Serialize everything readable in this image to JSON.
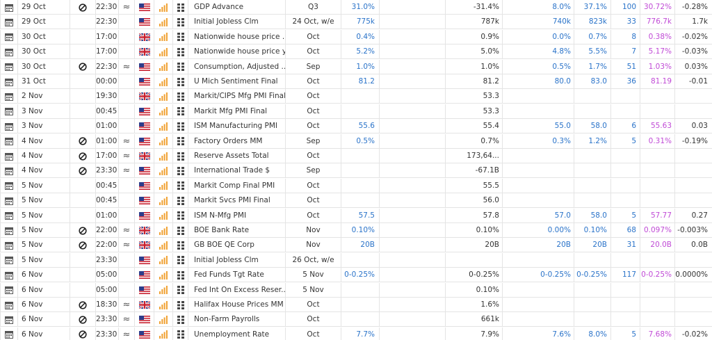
{
  "table": {
    "rows": [
      {
        "date": "29 Oct",
        "halted": true,
        "time": "22:30",
        "flag": "us",
        "event": "GDP Advance",
        "period": "Q3",
        "actual": "31.0%",
        "prior": "-31.4%",
        "low": "8.0%",
        "high": "37.1%",
        "count": 100,
        "mean": "30.72%",
        "diff": "-0.28%"
      },
      {
        "date": "29 Oct",
        "halted": false,
        "time": "22:30",
        "flag": "us",
        "event": "Initial Jobless Clm",
        "period": "24 Oct, w/e",
        "actual": "775k",
        "prior": "787k",
        "low": "740k",
        "high": "823k",
        "count": 33,
        "mean": "776.7k",
        "diff": "1.7k"
      },
      {
        "date": "30 Oct",
        "halted": false,
        "time": "17:00",
        "flag": "uk",
        "event": "Nationwide house price ...",
        "period": "Oct",
        "actual": "0.4%",
        "prior": "0.9%",
        "low": "0.0%",
        "high": "0.7%",
        "count": 8,
        "mean": "0.38%",
        "diff": "-0.02%"
      },
      {
        "date": "30 Oct",
        "halted": false,
        "time": "17:00",
        "flag": "uk",
        "event": "Nationwide house price yy",
        "period": "Oct",
        "actual": "5.2%",
        "prior": "5.0%",
        "low": "4.8%",
        "high": "5.5%",
        "count": 7,
        "mean": "5.17%",
        "diff": "-0.03%"
      },
      {
        "date": "30 Oct",
        "halted": true,
        "time": "22:30",
        "flag": "us",
        "event": "Consumption, Adjusted ...",
        "period": "Sep",
        "actual": "1.0%",
        "prior": "1.0%",
        "low": "0.5%",
        "high": "1.7%",
        "count": 51,
        "mean": "1.03%",
        "diff": "0.03%"
      },
      {
        "date": "31 Oct",
        "halted": false,
        "time": "00:00",
        "flag": "us",
        "event": "U Mich Sentiment Final",
        "period": "Oct",
        "actual": "81.2",
        "prior": "81.2",
        "low": "80.0",
        "high": "83.0",
        "count": 36,
        "mean": "81.19",
        "diff": "-0.01"
      },
      {
        "date": "2 Nov",
        "halted": false,
        "time": "19:30",
        "flag": "uk",
        "event": "Markit/CIPS Mfg PMI Final",
        "period": "Oct",
        "prior": "53.3"
      },
      {
        "date": "3 Nov",
        "halted": false,
        "time": "00:45",
        "flag": "us",
        "event": "Markit Mfg PMI Final",
        "period": "Oct",
        "prior": "53.3"
      },
      {
        "date": "3 Nov",
        "halted": false,
        "time": "01:00",
        "flag": "us",
        "event": "ISM Manufacturing PMI",
        "period": "Oct",
        "actual": "55.6",
        "prior": "55.4",
        "low": "55.0",
        "high": "58.0",
        "count": 6,
        "mean": "55.63",
        "diff": "0.03"
      },
      {
        "date": "4 Nov",
        "halted": true,
        "time": "01:00",
        "flag": "us",
        "event": "Factory Orders MM",
        "period": "Sep",
        "actual": "0.5%",
        "prior": "0.7%",
        "low": "0.3%",
        "high": "1.2%",
        "count": 5,
        "mean": "0.31%",
        "diff": "-0.19%"
      },
      {
        "date": "4 Nov",
        "halted": true,
        "time": "17:00",
        "flag": "uk",
        "event": "Reserve Assets Total",
        "period": "Oct",
        "prior": "173,64..."
      },
      {
        "date": "4 Nov",
        "halted": true,
        "time": "23:30",
        "flag": "us",
        "event": "International Trade $",
        "period": "Sep",
        "prior": "-67.1B"
      },
      {
        "date": "5 Nov",
        "halted": false,
        "time": "00:45",
        "flag": "us",
        "event": "Markit Comp Final PMI",
        "period": "Oct",
        "prior": "55.5"
      },
      {
        "date": "5 Nov",
        "halted": false,
        "time": "00:45",
        "flag": "us",
        "event": "Markit Svcs PMI Final",
        "period": "Oct",
        "prior": "56.0"
      },
      {
        "date": "5 Nov",
        "halted": false,
        "time": "01:00",
        "flag": "us",
        "event": "ISM N-Mfg PMI",
        "period": "Oct",
        "actual": "57.5",
        "prior": "57.8",
        "low": "57.0",
        "high": "58.0",
        "count": 5,
        "mean": "57.77",
        "diff": "0.27"
      },
      {
        "date": "5 Nov",
        "halted": true,
        "time": "22:00",
        "flag": "uk",
        "event": "BOE Bank Rate",
        "period": "Nov",
        "actual": "0.10%",
        "prior": "0.10%",
        "low": "0.00%",
        "high": "0.10%",
        "count": 68,
        "mean": "0.097%",
        "diff": "-0.003%"
      },
      {
        "date": "5 Nov",
        "halted": true,
        "time": "22:00",
        "flag": "uk",
        "event": "GB BOE QE Corp",
        "period": "Nov",
        "actual": "20B",
        "prior": "20B",
        "low": "20B",
        "high": "20B",
        "count": 31,
        "mean": "20.0B",
        "diff": "0.0B"
      },
      {
        "date": "5 Nov",
        "halted": false,
        "time": "23:30",
        "flag": "us",
        "event": "Initial Jobless Clm",
        "period": "26 Oct, w/e"
      },
      {
        "date": "6 Nov",
        "halted": false,
        "time": "05:00",
        "flag": "us",
        "event": "Fed Funds Tgt Rate",
        "period": "5 Nov",
        "actual": "0-0.25%",
        "prior": "0-0.25%",
        "low": "0-0.25%",
        "high": "0-0.25%",
        "count": 117,
        "mean": "0-0.25%",
        "diff": "0.0000%"
      },
      {
        "date": "6 Nov",
        "halted": false,
        "time": "05:00",
        "flag": "us",
        "event": "Fed Int On Excess Reser...",
        "period": "5 Nov",
        "prior": "0.10%"
      },
      {
        "date": "6 Nov",
        "halted": true,
        "time": "18:30",
        "flag": "uk",
        "event": "Halifax House Prices MM",
        "period": "Oct",
        "prior": "1.6%"
      },
      {
        "date": "6 Nov",
        "halted": true,
        "time": "23:30",
        "flag": "us",
        "event": "Non-Farm Payrolls",
        "period": "Oct",
        "prior": "661k"
      },
      {
        "date": "6 Nov",
        "halted": true,
        "time": "23:30",
        "flag": "us",
        "event": "Unemployment Rate",
        "period": "Oct",
        "actual": "7.7%",
        "prior": "7.9%",
        "low": "7.6%",
        "high": "8.0%",
        "count": 5,
        "mean": "7.68%",
        "diff": "-0.02%"
      }
    ]
  }
}
